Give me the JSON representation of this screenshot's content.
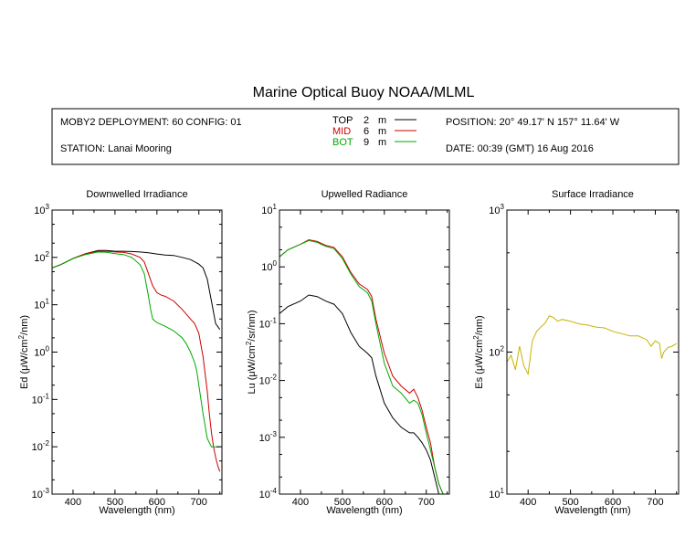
{
  "page_title": "Marine Optical Buoy NOAA/MLML",
  "info": {
    "deployment": "MOBY2 DEPLOYMENT: 60 CONFIG: 01",
    "station": "STATION: Lanai Mooring",
    "position": "POSITION: 20° 49.17' N   157° 11.64' W",
    "date": "DATE: 00:39 (GMT) 16 Aug 2016"
  },
  "legend": [
    {
      "name": "TOP",
      "depth": "2",
      "unit": "m",
      "color": "#000000"
    },
    {
      "name": "MID",
      "depth": "6",
      "unit": "m",
      "color": "#cc0000"
    },
    {
      "name": "BOT",
      "depth": "9",
      "unit": "m",
      "color": "#00aa00"
    }
  ],
  "chart_data": [
    {
      "type": "line",
      "title": "Downwelled Irradiance",
      "xlabel": "Wavelength (nm)",
      "ylabel_main": "Ed  (μW/cm",
      "ylabel_sup": "2",
      "ylabel_tail": "/nm)",
      "xlim": [
        350,
        755
      ],
      "ylim_exp": [
        -3,
        3
      ],
      "y_scale": "log",
      "x_ticks": [
        "400",
        "500",
        "600",
        "700"
      ],
      "y_tick_exps": [
        "3",
        "2",
        "1",
        "0",
        "-1",
        "-2",
        "-3"
      ],
      "series": [
        {
          "name": "TOP",
          "color": "#000000",
          "x": [
            350,
            370,
            400,
            430,
            460,
            480,
            500,
            520,
            540,
            560,
            580,
            600,
            620,
            640,
            660,
            680,
            700,
            710,
            720,
            730,
            740,
            750
          ],
          "y": [
            60,
            70,
            95,
            120,
            140,
            140,
            135,
            135,
            133,
            130,
            125,
            118,
            112,
            110,
            100,
            90,
            72,
            60,
            35,
            12,
            4,
            3
          ]
        },
        {
          "name": "MID",
          "color": "#cc0000",
          "x": [
            350,
            370,
            400,
            430,
            460,
            480,
            500,
            520,
            540,
            560,
            570,
            580,
            590,
            600,
            610,
            620,
            640,
            660,
            680,
            690,
            700,
            710,
            720,
            725,
            730,
            735,
            740,
            745,
            750
          ],
          "y": [
            60,
            70,
            95,
            120,
            135,
            135,
            130,
            128,
            118,
            100,
            80,
            45,
            25,
            18,
            16,
            15,
            12,
            8,
            5,
            4,
            2.5,
            0.8,
            0.15,
            0.05,
            0.02,
            0.01,
            0.006,
            0.004,
            0.003
          ]
        },
        {
          "name": "BOT",
          "color": "#00aa00",
          "x": [
            350,
            370,
            400,
            430,
            460,
            480,
            500,
            520,
            540,
            560,
            570,
            580,
            585,
            590,
            600,
            620,
            640,
            660,
            670,
            680,
            690,
            695,
            700,
            705,
            710,
            720,
            730,
            740,
            750
          ],
          "y": [
            60,
            70,
            95,
            115,
            130,
            128,
            120,
            115,
            100,
            70,
            45,
            15,
            8,
            5,
            4.2,
            3.5,
            2.8,
            2,
            1.5,
            1,
            0.6,
            0.4,
            0.2,
            0.1,
            0.05,
            0.015,
            0.01,
            0.01,
            0.01
          ]
        }
      ]
    },
    {
      "type": "line",
      "title": "Upwelled Radiance",
      "xlabel": "Wavelength (nm)",
      "ylabel_main": "Lu  (μW/cm",
      "ylabel_sup": "2",
      "ylabel_tail": "/sr/nm)",
      "xlim": [
        350,
        755
      ],
      "ylim_exp": [
        -4,
        1
      ],
      "y_scale": "log",
      "x_ticks": [
        "400",
        "500",
        "600",
        "700"
      ],
      "y_tick_exps": [
        "1",
        "0",
        "-1",
        "-2",
        "-3",
        "-4"
      ],
      "series": [
        {
          "name": "TOP",
          "color": "#000000",
          "x": [
            350,
            370,
            400,
            420,
            440,
            460,
            480,
            500,
            520,
            540,
            560,
            570,
            580,
            600,
            620,
            640,
            660,
            670,
            680,
            690,
            700,
            710,
            720,
            730,
            740
          ],
          "y": [
            0.15,
            0.2,
            0.25,
            0.32,
            0.3,
            0.25,
            0.22,
            0.15,
            0.07,
            0.04,
            0.03,
            0.025,
            0.012,
            0.004,
            0.0022,
            0.0015,
            0.0012,
            0.0012,
            0.001,
            0.0008,
            0.0006,
            0.0004,
            0.0002,
            0.0001,
            8e-05
          ]
        },
        {
          "name": "MID",
          "color": "#cc0000",
          "x": [
            350,
            370,
            400,
            420,
            440,
            460,
            480,
            500,
            520,
            540,
            560,
            570,
            580,
            600,
            620,
            640,
            660,
            670,
            680,
            690,
            700,
            710,
            720,
            730,
            740
          ],
          "y": [
            1.5,
            2,
            2.5,
            3,
            2.8,
            2.4,
            2.2,
            1.5,
            0.8,
            0.5,
            0.4,
            0.3,
            0.12,
            0.03,
            0.012,
            0.008,
            0.006,
            0.007,
            0.005,
            0.003,
            0.0015,
            0.0008,
            0.0003,
            0.00015,
            0.0001
          ]
        },
        {
          "name": "BOT",
          "color": "#00aa00",
          "x": [
            350,
            370,
            400,
            420,
            440,
            460,
            480,
            500,
            520,
            540,
            560,
            570,
            580,
            600,
            620,
            640,
            660,
            670,
            680,
            690,
            700,
            710,
            720,
            730,
            740
          ],
          "y": [
            1.5,
            2,
            2.5,
            2.9,
            2.7,
            2.3,
            2.1,
            1.4,
            0.75,
            0.45,
            0.35,
            0.25,
            0.1,
            0.02,
            0.008,
            0.006,
            0.004,
            0.0045,
            0.004,
            0.0025,
            0.0012,
            0.0006,
            0.0003,
            0.00015,
            0.0001
          ]
        }
      ]
    },
    {
      "type": "line",
      "title": "Surface Irradiance",
      "xlabel": "Wavelength (nm)",
      "ylabel_main": "Es  (μW/cm",
      "ylabel_sup": "2",
      "ylabel_tail": "/nm)",
      "xlim": [
        350,
        755
      ],
      "ylim_exp": [
        1,
        3
      ],
      "y_scale": "log",
      "x_ticks": [
        "400",
        "500",
        "600",
        "700"
      ],
      "y_tick_exps": [
        "3",
        "2",
        "1"
      ],
      "series": [
        {
          "name": "Es",
          "color": "#c8b400",
          "x": [
            350,
            360,
            370,
            380,
            390,
            400,
            410,
            420,
            430,
            440,
            450,
            460,
            470,
            480,
            500,
            520,
            540,
            560,
            580,
            600,
            620,
            640,
            660,
            680,
            690,
            700,
            710,
            715,
            720,
            730,
            740,
            750
          ],
          "y": [
            85,
            95,
            75,
            110,
            80,
            70,
            120,
            140,
            150,
            160,
            180,
            175,
            165,
            170,
            165,
            158,
            155,
            150,
            148,
            140,
            135,
            130,
            130,
            122,
            110,
            120,
            115,
            90,
            100,
            108,
            110,
            115
          ]
        }
      ]
    }
  ]
}
